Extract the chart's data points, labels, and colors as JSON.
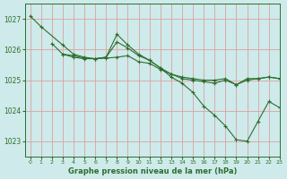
{
  "xlabel": "Graphe pression niveau de la mer (hPa)",
  "ylim": [
    1022.5,
    1027.5
  ],
  "xlim": [
    -0.5,
    23
  ],
  "yticks": [
    1023,
    1024,
    1025,
    1026,
    1027
  ],
  "xticks": [
    0,
    1,
    2,
    3,
    4,
    5,
    6,
    7,
    8,
    9,
    10,
    11,
    12,
    13,
    14,
    15,
    16,
    17,
    18,
    19,
    20,
    21,
    22,
    23
  ],
  "background_color": "#ceeaea",
  "grid_color": "#dda0a0",
  "line_color": "#2d6e2d",
  "lines": [
    {
      "x": [
        0,
        1,
        3,
        4,
        5,
        6,
        7,
        8,
        9,
        10,
        11,
        12,
        13,
        14,
        15,
        16,
        17,
        18,
        19,
        20,
        21,
        22,
        23
      ],
      "y": [
        1027.1,
        1026.75,
        1026.15,
        1025.85,
        1025.75,
        1025.7,
        1025.72,
        1025.75,
        1025.8,
        1025.6,
        1025.55,
        1025.35,
        1025.2,
        1025.1,
        1025.05,
        1025.0,
        1025.0,
        1025.05,
        1024.85,
        1025.05,
        1025.05,
        1025.1,
        1025.05
      ]
    },
    {
      "x": [
        2,
        3,
        4,
        5,
        6,
        7,
        8,
        9,
        10,
        11,
        12,
        13,
        14,
        15,
        16,
        17,
        18,
        19,
        20,
        21,
        22,
        23
      ],
      "y": [
        1026.2,
        1025.85,
        1025.75,
        1025.7,
        1025.7,
        1025.75,
        1026.25,
        1026.05,
        1025.8,
        1025.65,
        1025.4,
        1025.1,
        1024.9,
        1024.6,
        1024.15,
        1023.85,
        1023.5,
        1023.05,
        1023.0,
        1023.65,
        1024.3,
        1024.1
      ]
    },
    {
      "x": [
        3,
        4,
        5,
        6,
        7,
        8,
        9,
        10,
        11,
        12,
        13,
        14,
        15,
        16,
        17,
        18,
        19,
        20,
        21,
        22,
        23
      ],
      "y": [
        1025.85,
        1025.8,
        1025.72,
        1025.7,
        1025.75,
        1026.5,
        1026.15,
        1025.85,
        1025.65,
        1025.4,
        1025.2,
        1025.05,
        1025.0,
        1024.95,
        1024.9,
        1025.0,
        1024.85,
        1025.0,
        1025.05,
        1025.1,
        1025.05
      ]
    }
  ]
}
